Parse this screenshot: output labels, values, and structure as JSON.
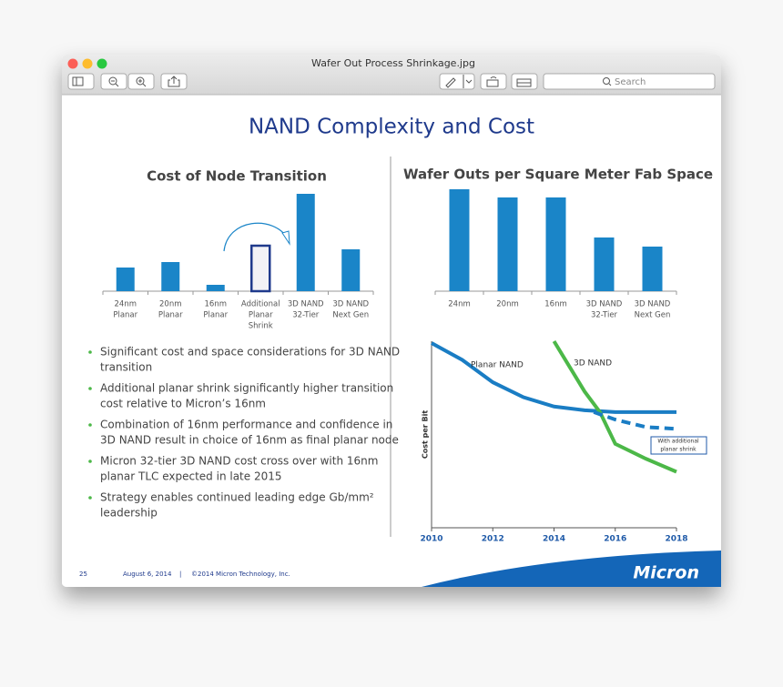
{
  "window": {
    "title": "Wafer Out Process Shrinkage.jpg",
    "search": "Search"
  },
  "slide": {
    "title": "NAND Complexity and Cost",
    "bullets": [
      [
        "Significant cost and space considerations for 3D NAND",
        "transition"
      ],
      [
        "Additional planar shrink significantly higher transition",
        "cost relative to Micron’s 16nm"
      ],
      [
        "Combination of 16nm performance and confidence in",
        "3D NAND result in choice of 16nm as final planar node"
      ],
      [
        "Micron 32-tier 3D NAND cost cross over with 16nm",
        "planar TLC expected in late 2015"
      ],
      [
        "Strategy enables continued leading edge Gb/mm²",
        "leadership"
      ]
    ],
    "footer": {
      "page": "25",
      "date": "August 6, 2014",
      "separator": "|",
      "copyright": "©2014 Micron Technology, Inc.",
      "logo": "Micron"
    }
  },
  "chart_data": [
    {
      "type": "bar",
      "title": "Cost of Node Transition",
      "categories": [
        [
          "24nm",
          "Planar"
        ],
        [
          "20nm",
          "Planar"
        ],
        [
          "16nm",
          "Planar"
        ],
        [
          "Additional",
          "Planar",
          "Shrink"
        ],
        [
          "3D NAND",
          "32-Tier"
        ],
        [
          "3D NAND",
          "Next Gen"
        ]
      ],
      "values": [
        26,
        32,
        7,
        50,
        107,
        46
      ],
      "bar_styles": [
        "solid",
        "solid",
        "solid",
        "outline",
        "solid",
        "solid"
      ],
      "color": "#1a85c8",
      "ylim": [
        0,
        110
      ]
    },
    {
      "type": "bar",
      "title": "Wafer Outs per Square Meter Fab Space",
      "categories": [
        [
          "24nm"
        ],
        [
          "20nm"
        ],
        [
          "16nm"
        ],
        [
          "3D NAND",
          "32-Tier"
        ],
        [
          "3D NAND",
          "Next Gen"
        ]
      ],
      "values": [
        112,
        103,
        103,
        59,
        49
      ],
      "color": "#1a85c8",
      "ylim": [
        0,
        115
      ]
    },
    {
      "type": "line",
      "y_label": "Cost per Bit",
      "xlim": [
        2010,
        2018
      ],
      "xticks": [
        2010,
        2012,
        2014,
        2016,
        2018
      ],
      "ylim": [
        0,
        100
      ],
      "series": [
        {
          "name": "Planar NAND",
          "color": "#1a7dc4",
          "dash": false,
          "x": [
            2010,
            2011,
            2012,
            2013,
            2014,
            2015,
            2016,
            2017,
            2018
          ],
          "values": [
            99,
            90,
            78,
            70,
            65,
            63,
            62,
            62,
            62
          ]
        },
        {
          "name": "3D NAND",
          "color": "#4cb848",
          "dash": false,
          "x": [
            2014,
            2015,
            2015.5,
            2016,
            2017,
            2018
          ],
          "values": [
            100,
            73,
            62,
            45,
            37,
            30
          ]
        },
        {
          "name": [
            "With additional",
            "planar shrink"
          ],
          "color": "#1a7dc4",
          "dash": true,
          "x": [
            2015.3,
            2016,
            2017,
            2018
          ],
          "values": [
            62,
            58,
            54,
            53
          ]
        }
      ]
    }
  ]
}
